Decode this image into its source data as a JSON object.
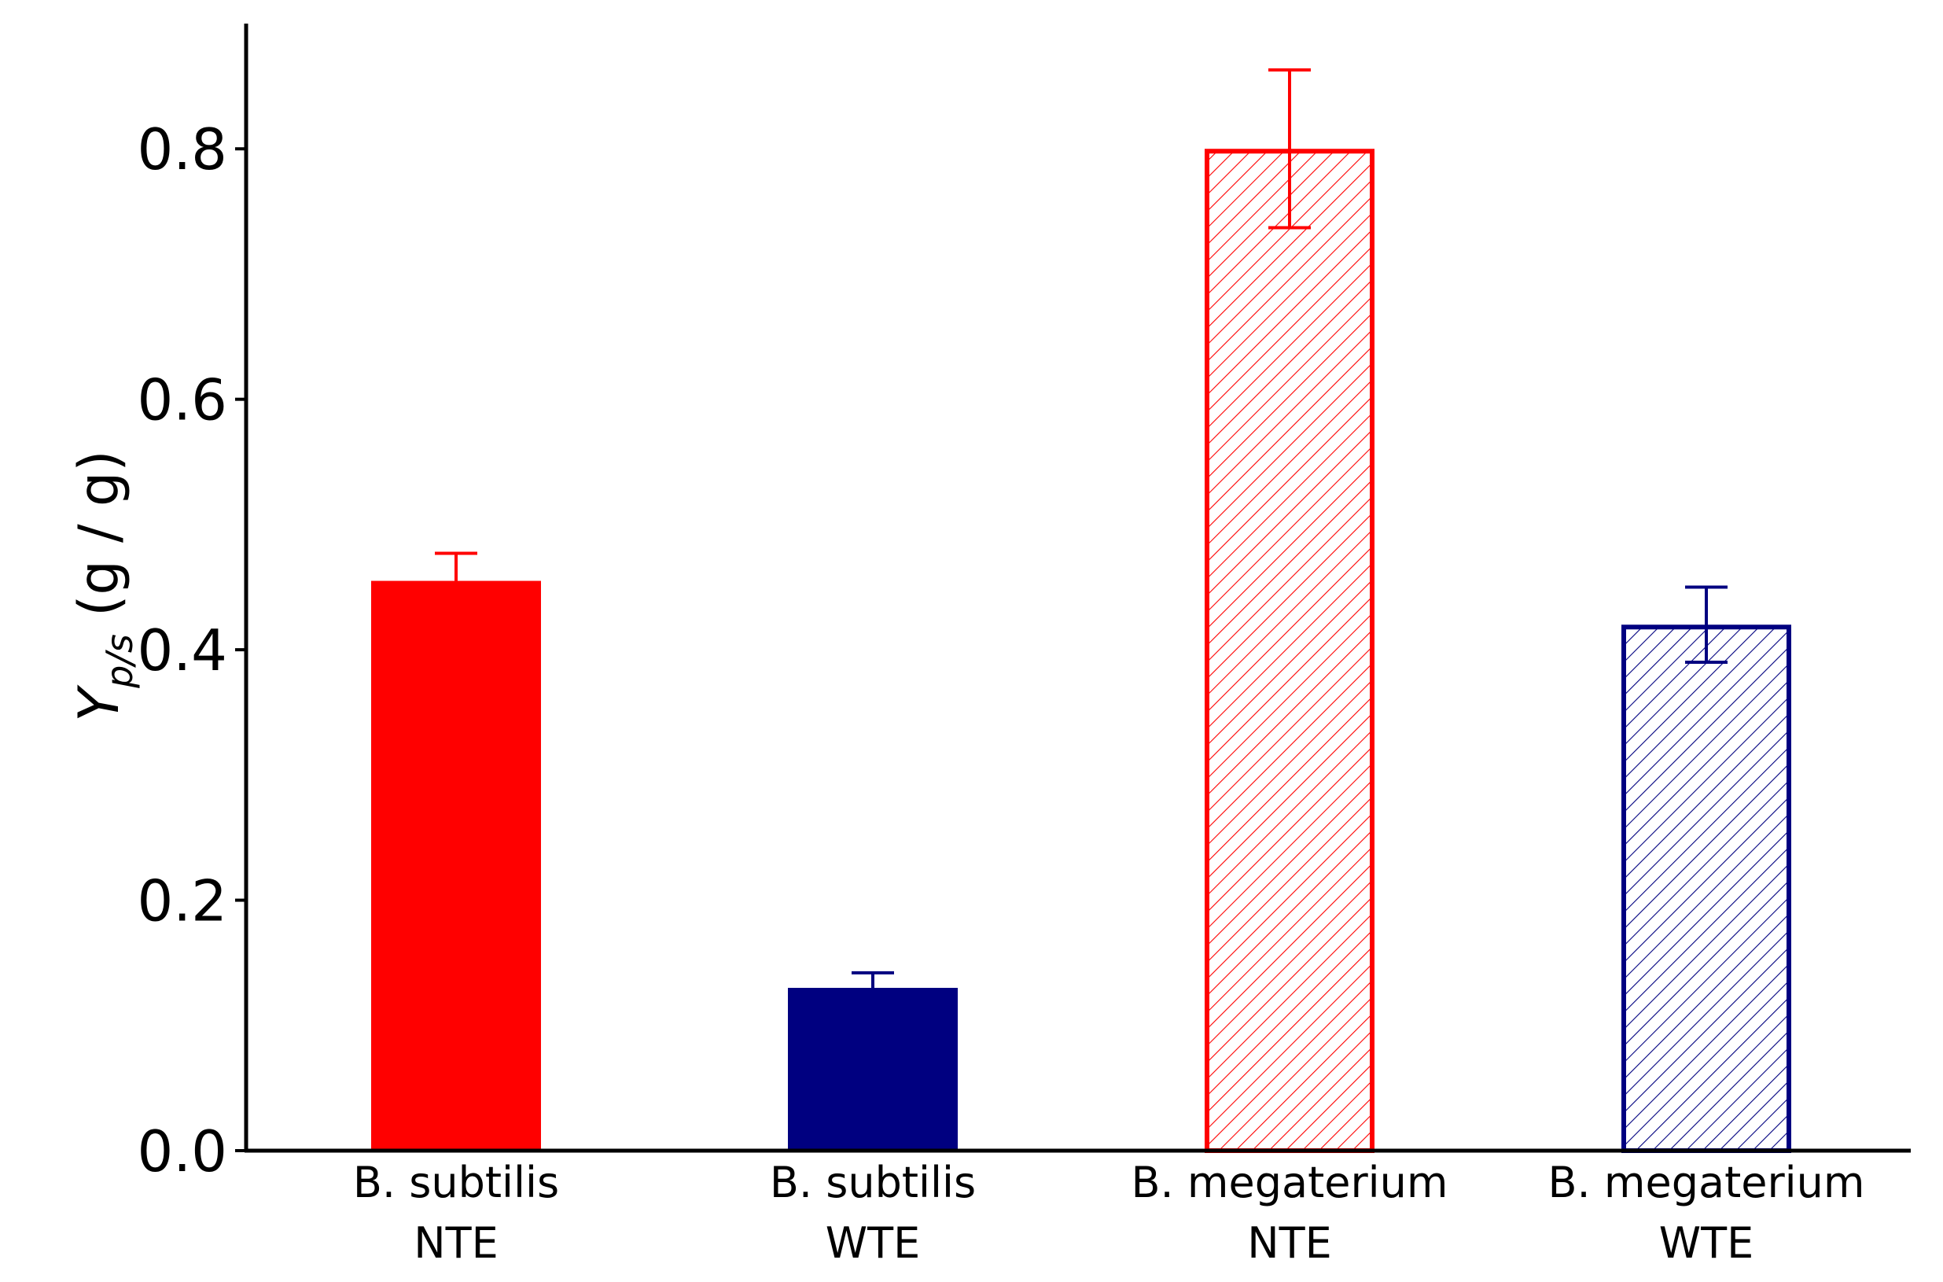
{
  "chart_data": {
    "type": "bar",
    "categories": [
      [
        "B. subtilis",
        "NTE"
      ],
      [
        "B. subtilis",
        "WTE"
      ],
      [
        "B. megaterium",
        "NTE"
      ],
      [
        "B. megaterium",
        "WTE"
      ]
    ],
    "values": [
      0.455,
      0.13,
      0.8,
      0.42
    ],
    "errors": [
      0.022,
      0.012,
      0.063,
      0.03
    ],
    "colors": [
      "#ff0000",
      "#000080",
      "#ff0000",
      "#000080"
    ],
    "styles": [
      "solid",
      "solid",
      "hatched",
      "hatched"
    ],
    "ylabel": {
      "main": "Y",
      "subscript": "p/s",
      "unit": " (g / g)"
    },
    "ylim": [
      0,
      0.9
    ],
    "yticks": [
      "0.0",
      "0.2",
      "0.4",
      "0.6",
      "0.8"
    ],
    "grid": false
  }
}
